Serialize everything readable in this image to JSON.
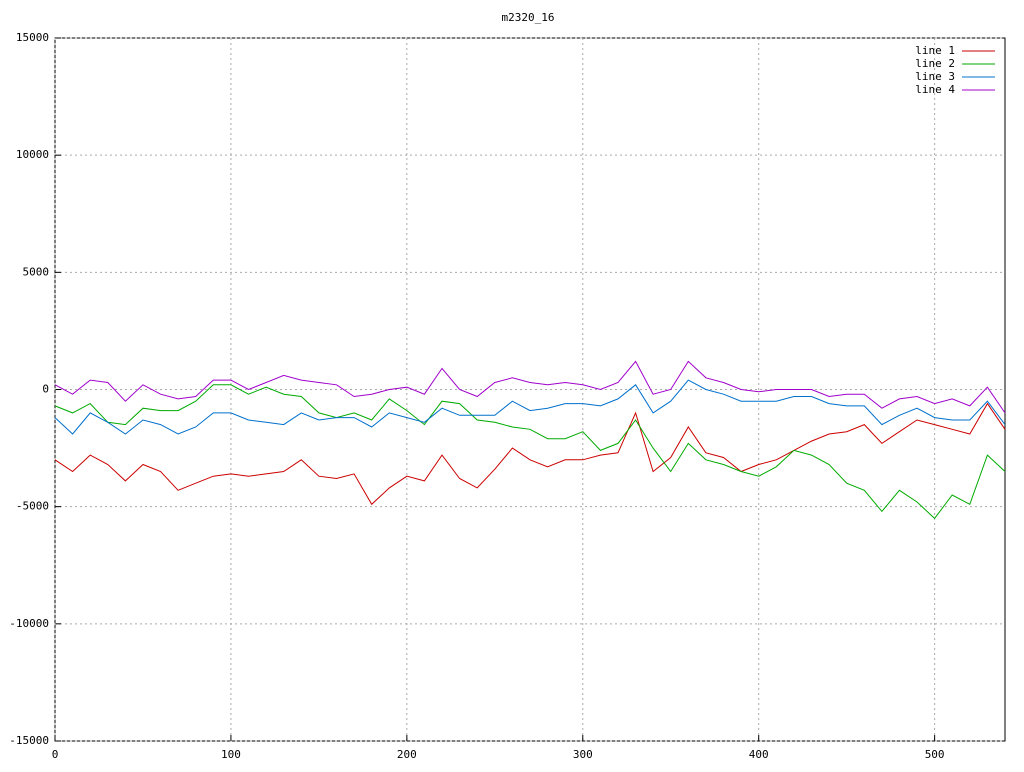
{
  "chart_data": {
    "type": "line",
    "title": "m2320_16",
    "x": [
      0,
      10,
      20,
      30,
      40,
      50,
      60,
      70,
      80,
      90,
      100,
      110,
      120,
      130,
      140,
      150,
      160,
      170,
      180,
      190,
      200,
      210,
      220,
      230,
      240,
      250,
      260,
      270,
      280,
      290,
      300,
      310,
      320,
      330,
      340,
      350,
      360,
      370,
      380,
      390,
      400,
      410,
      420,
      430,
      440,
      450,
      460,
      470,
      480,
      490,
      500,
      510,
      520,
      530,
      540
    ],
    "series": [
      {
        "name": "line 1",
        "color": "#cc0000",
        "values": [
          -3000,
          -3500,
          -2800,
          -3200,
          -3900,
          -3200,
          -3500,
          -4300,
          -4000,
          -3700,
          -3600,
          -3700,
          -3600,
          -3500,
          -3000,
          -3700,
          -3800,
          -3600,
          -4900,
          -4200,
          -3700,
          -3900,
          -2800,
          -3800,
          -4200,
          -3400,
          -2500,
          -3000,
          -3300,
          -3000,
          -3000,
          -2800,
          -2700,
          -1000,
          -3500,
          -2900,
          -1600,
          -2700,
          -2900,
          -3500,
          -3200,
          -3000,
          -2600,
          -2200,
          -1900,
          -1800,
          -1500,
          -2300,
          -1800,
          -1300,
          -1500,
          -1700,
          -1900,
          -600,
          -1700
        ]
      },
      {
        "name": "line 2",
        "color": "#00aa00",
        "values": [
          -700,
          -1000,
          -600,
          -1400,
          -1500,
          -800,
          -900,
          -900,
          -500,
          200,
          200,
          -200,
          100,
          -200,
          -300,
          -1000,
          -1200,
          -1000,
          -1300,
          -400,
          -900,
          -1500,
          -500,
          -600,
          -1300,
          -1400,
          -1600,
          -1700,
          -2100,
          -2100,
          -1800,
          -2600,
          -2300,
          -1300,
          -2500,
          -3500,
          -2300,
          -3000,
          -3200,
          -3500,
          -3700,
          -3300,
          -2600,
          -2800,
          -3200,
          -4000,
          -4300,
          -5200,
          -4300,
          -4800,
          -5500,
          -4500,
          -4900,
          -2800,
          -3500
        ]
      },
      {
        "name": "line 3",
        "color": "#0070cc",
        "values": [
          -1200,
          -1900,
          -1000,
          -1400,
          -1900,
          -1300,
          -1500,
          -1900,
          -1600,
          -1000,
          -1000,
          -1300,
          -1400,
          -1500,
          -1000,
          -1300,
          -1200,
          -1200,
          -1600,
          -1000,
          -1200,
          -1400,
          -800,
          -1100,
          -1100,
          -1100,
          -500,
          -900,
          -800,
          -600,
          -600,
          -700,
          -400,
          200,
          -1000,
          -500,
          400,
          0,
          -200,
          -500,
          -500,
          -500,
          -300,
          -300,
          -600,
          -700,
          -700,
          -1500,
          -1100,
          -800,
          -1200,
          -1300,
          -1300,
          -500,
          -1500
        ]
      },
      {
        "name": "line 4",
        "color": "#a000cc",
        "values": [
          200,
          -200,
          400,
          300,
          -500,
          200,
          -200,
          -400,
          -300,
          400,
          400,
          0,
          300,
          600,
          400,
          300,
          200,
          -300,
          -200,
          0,
          100,
          -200,
          900,
          0,
          -300,
          300,
          500,
          300,
          200,
          300,
          200,
          0,
          300,
          1200,
          -200,
          0,
          1200,
          500,
          300,
          0,
          -100,
          0,
          0,
          0,
          -300,
          -200,
          -200,
          -800,
          -400,
          -300,
          -600,
          -400,
          -700,
          100,
          -1000
        ]
      }
    ],
    "xlim": [
      0,
      540
    ],
    "xticks": [
      0,
      100,
      200,
      300,
      400,
      500
    ],
    "ylim": [
      -15000,
      15000
    ],
    "yticks": [
      -15000,
      -10000,
      -5000,
      0,
      5000,
      10000,
      15000
    ],
    "grid": true,
    "legend": "top-right"
  }
}
